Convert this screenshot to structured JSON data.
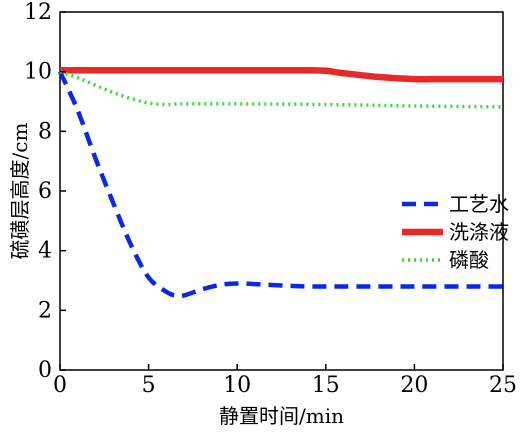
{
  "chart_data": {
    "type": "line",
    "xlabel": "静置时间/min",
    "ylabel": "硫磺层高度/cm",
    "xlim": [
      0,
      25
    ],
    "ylim": [
      0,
      12
    ],
    "xticks": [
      0,
      5,
      10,
      15,
      20,
      25
    ],
    "yticks": [
      0,
      2,
      4,
      6,
      8,
      10,
      12
    ],
    "grid": false,
    "legend_position": "center-right",
    "series": [
      {
        "name": "工艺水",
        "color": "#0a28e6",
        "style": "dashed",
        "x": [
          0,
          1,
          2,
          3,
          4,
          5,
          6,
          6.5,
          7,
          8,
          9,
          10,
          11,
          12,
          13,
          14,
          15,
          20,
          25
        ],
        "y": [
          10.0,
          8.7,
          7.1,
          5.6,
          4.2,
          3.1,
          2.62,
          2.5,
          2.5,
          2.7,
          2.85,
          2.9,
          2.88,
          2.85,
          2.82,
          2.8,
          2.8,
          2.8,
          2.8
        ]
      },
      {
        "name": "洗涤液",
        "color": "#e62a2a",
        "style": "solid",
        "x": [
          0,
          5,
          10,
          14,
          15,
          16,
          18,
          20,
          21,
          22,
          25
        ],
        "y": [
          10.05,
          10.05,
          10.05,
          10.05,
          10.03,
          9.95,
          9.82,
          9.75,
          9.75,
          9.75,
          9.75
        ]
      },
      {
        "name": "磷酸",
        "color": "#33dd33",
        "style": "dotted",
        "x": [
          0,
          1,
          2,
          3,
          4,
          5,
          6,
          7,
          10,
          15,
          20,
          25
        ],
        "y": [
          10.0,
          9.8,
          9.55,
          9.3,
          9.1,
          8.95,
          8.9,
          8.92,
          8.92,
          8.9,
          8.85,
          8.82
        ]
      }
    ]
  }
}
